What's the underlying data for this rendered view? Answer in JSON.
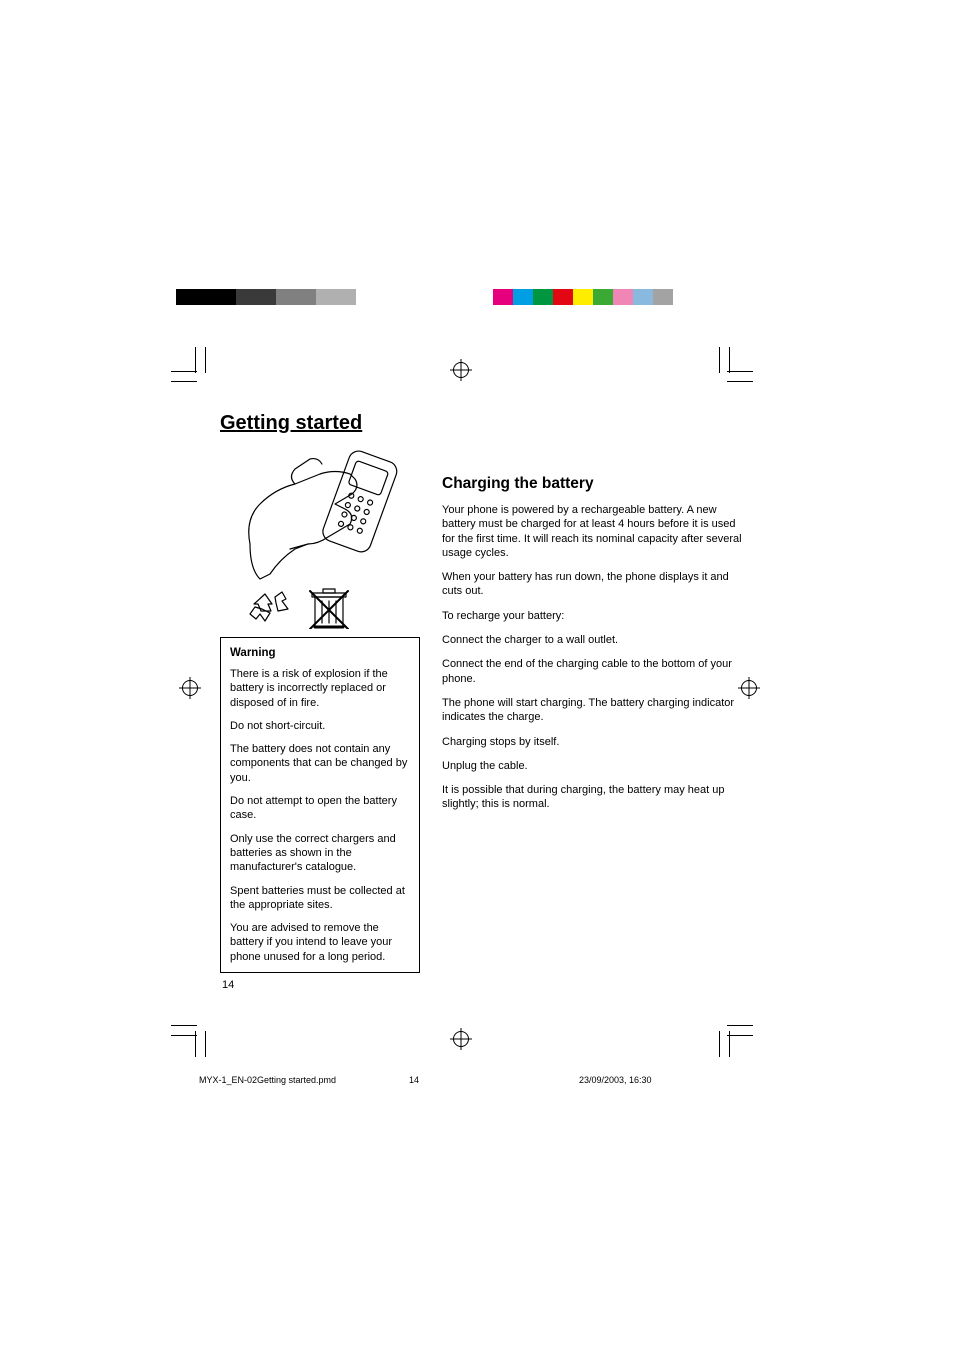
{
  "color_strip_left": [
    "#000000",
    "#000000",
    "#000000",
    "#3a3a3a",
    "#3a3a3a",
    "#808080",
    "#808080",
    "#b0b0b0",
    "#b0b0b0",
    "#ffffff"
  ],
  "color_strip_right": [
    "#e6007e",
    "#009fe3",
    "#009640",
    "#e30613",
    "#ffed00",
    "#3aaa35",
    "#ef86b5",
    "#8ab9e0",
    "#a3a3a3"
  ],
  "page": {
    "section_title": "Getting started",
    "page_number": "14",
    "warning": {
      "title": "Warning",
      "paragraphs": [
        "There is a risk of explosion if the battery is incorrectly replaced or disposed of in fire.",
        "Do not short-circuit.",
        "The battery does not contain any components that can be changed by you.",
        "Do not attempt to open the battery case.",
        "Only use the correct chargers and batteries as shown in the manufacturer's catalogue.",
        "Spent batteries must be collected at the appropriate sites.",
        "You are advised to remove the battery if you intend to leave your phone unused for a long period."
      ]
    },
    "right": {
      "title": "Charging the battery",
      "paragraphs": [
        "Your phone is powered by a rechargeable battery. A new battery must be charged for at least 4 hours before it is used for the first time. It will reach its nominal capacity after several usage cycles.",
        "When your battery has run down, the phone displays it and cuts out.",
        "To recharge your battery:",
        "Connect the charger to a wall outlet.",
        "Connect the end of the charging cable to the bottom of your phone.",
        "The phone will start charging. The battery charging indicator indicates the charge.",
        "Charging stops by itself.",
        "Unplug the cable.",
        "It is possible that during charging, the battery may heat up slightly; this is normal."
      ]
    }
  },
  "footer": {
    "filename": "MYX-1_EN-02Getting started.pmd",
    "page": "14",
    "datetime": "23/09/2003, 16:30"
  }
}
